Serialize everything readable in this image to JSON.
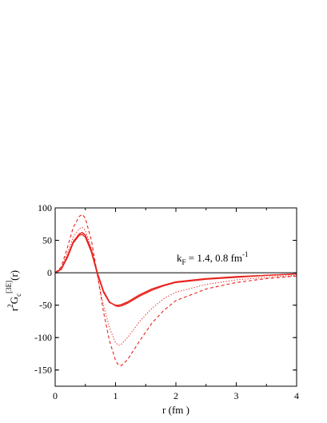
{
  "chart_data": {
    "type": "line",
    "xlabel": "r (fm )",
    "ylabel": {
      "prefix": "r",
      "power": "2",
      "main": "G",
      "sub": "c",
      "sup": "[3E]",
      "suffix": "(r)"
    },
    "annotation": {
      "main": "k",
      "sub": "F",
      "text": " = 1.4, 0.8 fm",
      "sup": "-1"
    },
    "xlim": [
      0,
      4
    ],
    "ylim": [
      -175,
      100
    ],
    "x_ticks": [
      0,
      1,
      2,
      3,
      4
    ],
    "x_tick_labels": [
      "0",
      "1",
      "2",
      "3",
      "4"
    ],
    "y_ticks": [
      100,
      50,
      0,
      -50,
      -100,
      -150
    ],
    "y_tick_labels": [
      "100",
      "50",
      "0",
      "-50",
      "-100",
      "-150"
    ],
    "zero_line": true,
    "grid": false,
    "color": "#e8231d",
    "series": [
      {
        "style": "solid",
        "x": [
          0,
          0.1,
          0.2,
          0.3,
          0.4,
          0.45,
          0.5,
          0.6,
          0.7,
          0.8,
          0.9,
          1.0,
          1.05,
          1.1,
          1.2,
          1.4,
          1.6,
          1.8,
          2.0,
          2.5,
          3.0,
          3.5,
          4.0
        ],
        "y": [
          0,
          6,
          25,
          48,
          60,
          62,
          58,
          35,
          0,
          -28,
          -45,
          -51,
          -52,
          -51,
          -47,
          -36,
          -27,
          -20,
          -15,
          -10,
          -7,
          -4,
          -2
        ]
      },
      {
        "style": "solid",
        "x": [
          0,
          0.1,
          0.2,
          0.3,
          0.4,
          0.45,
          0.5,
          0.6,
          0.7,
          0.8,
          0.9,
          1.0,
          1.05,
          1.1,
          1.2,
          1.4,
          1.6,
          1.8,
          2.0,
          2.5,
          3.0,
          3.5,
          4.0
        ],
        "y": [
          0,
          5,
          23,
          46,
          58,
          59,
          55,
          32,
          -2,
          -30,
          -46,
          -50,
          -50,
          -49,
          -45,
          -34,
          -25,
          -19,
          -14,
          -9,
          -6,
          -4,
          -2
        ]
      },
      {
        "style": "dotted",
        "x": [
          0,
          0.1,
          0.2,
          0.3,
          0.4,
          0.45,
          0.5,
          0.6,
          0.7,
          0.8,
          0.9,
          1.0,
          1.05,
          1.1,
          1.2,
          1.4,
          1.6,
          1.8,
          2.0,
          2.5,
          3.0,
          3.5,
          4.0
        ],
        "y": [
          0,
          7,
          30,
          55,
          68,
          70,
          65,
          38,
          -5,
          -50,
          -85,
          -108,
          -112,
          -110,
          -100,
          -75,
          -55,
          -40,
          -30,
          -18,
          -11,
          -7,
          -4
        ]
      },
      {
        "style": "dashed",
        "x": [
          0,
          0.1,
          0.2,
          0.3,
          0.4,
          0.45,
          0.5,
          0.6,
          0.7,
          0.8,
          0.9,
          1.0,
          1.05,
          1.1,
          1.2,
          1.4,
          1.6,
          1.8,
          2.0,
          2.5,
          3.0,
          3.5,
          4.0
        ],
        "y": [
          0,
          9,
          38,
          70,
          87,
          90,
          84,
          50,
          -3,
          -60,
          -105,
          -135,
          -143,
          -143,
          -134,
          -105,
          -78,
          -58,
          -43,
          -25,
          -15,
          -9,
          -5
        ]
      }
    ]
  }
}
